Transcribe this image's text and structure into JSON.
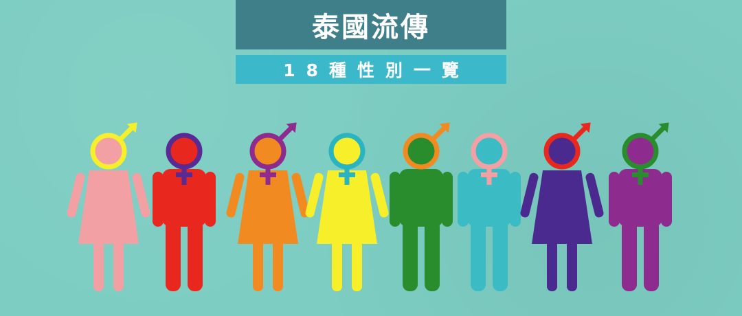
{
  "header": {
    "title": "泰國流傳",
    "subtitle": "18種性別一覽"
  },
  "figures": [
    {
      "body": "female",
      "body_color": "#f2a0a3",
      "ring_color": "#f5ef2c",
      "fill_color": "#f2a0a3",
      "symbol": "male",
      "symbol_color": "#f5ef2c"
    },
    {
      "body": "male",
      "body_color": "#e8281f",
      "ring_color": "#572a94",
      "fill_color": "#e8281f",
      "symbol": "female",
      "symbol_color": "#572a94"
    },
    {
      "body": "female",
      "body_color": "#f28a22",
      "ring_color": "#8e2b8e",
      "fill_color": "#f28a22",
      "symbol": "female-male",
      "symbol_color": "#8e2b8e"
    },
    {
      "body": "female",
      "body_color": "#f7ef2a",
      "ring_color": "#2ab4c1",
      "fill_color": "#f7ef2a",
      "symbol": "female",
      "symbol_color": "#2ab4c1"
    },
    {
      "body": "male",
      "body_color": "#2a8d2d",
      "ring_color": "#f28a22",
      "fill_color": "#2a8d2d",
      "symbol": "male",
      "symbol_color": "#f28a22"
    },
    {
      "body": "male",
      "body_color": "#3bbcc4",
      "ring_color": "#f2a0a3",
      "fill_color": "#3bbcc4",
      "symbol": "female",
      "symbol_color": "#f2a0a3"
    },
    {
      "body": "female",
      "body_color": "#4a2a8f",
      "ring_color": "#e8281f",
      "fill_color": "#4a2a8f",
      "symbol": "male",
      "symbol_color": "#e8281f"
    },
    {
      "body": "male",
      "body_color": "#8e2b8e",
      "ring_color": "#2a8d2d",
      "fill_color": "#8e2b8e",
      "symbol": "female-male",
      "symbol_color": "#2a8d2d"
    }
  ]
}
